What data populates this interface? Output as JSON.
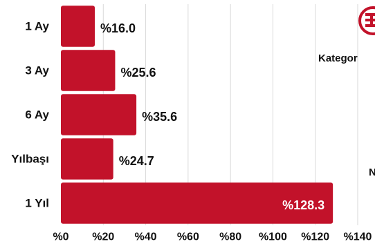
{
  "chart_data": {
    "type": "bar",
    "orientation": "horizontal",
    "categories": [
      "1 Ay",
      "3 Ay",
      "6 Ay",
      "Yılbaşı",
      "1 Yıl"
    ],
    "values": [
      16.0,
      25.6,
      35.6,
      24.7,
      128.3
    ],
    "value_labels": [
      "%16.0",
      "%25.6",
      "%35.6",
      "%24.7",
      "%128.3"
    ],
    "xlim": [
      0,
      140
    ],
    "x_ticks": [
      0,
      20,
      40,
      60,
      80,
      100,
      120,
      140
    ],
    "x_tick_labels": [
      "%0",
      "%20",
      "%40",
      "%60",
      "%80",
      "%100",
      "%120",
      "%140"
    ],
    "grid": true,
    "title": "",
    "xlabel": "",
    "ylabel": ""
  },
  "side_texts": {
    "kategori": "Kategor",
    "n": "N"
  },
  "colors": {
    "bar": "#c2122a",
    "grid": "#d9d9d9",
    "label_inside": "#ffffff",
    "label_outside": "#111111",
    "logo": "#c2122a"
  },
  "logo_icon": "red-circular-emblem-icon"
}
